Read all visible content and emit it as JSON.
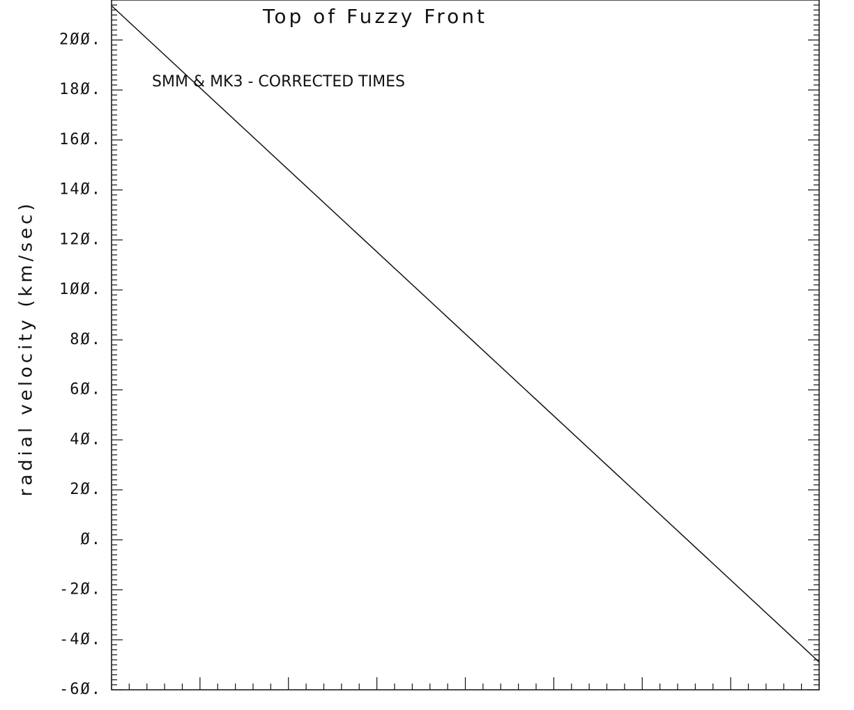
{
  "chart_data": {
    "type": "line",
    "title": "Top of Fuzzy Front",
    "annotation": "SMM & MK3 - CORRECTED TIMES",
    "ylabel": "radial velocity (km/sec)",
    "x": [
      0,
      8
    ],
    "series": [
      {
        "color": "#111111",
        "values": [
          213.7,
          -48.9
        ]
      }
    ],
    "xlim": [
      0,
      8
    ],
    "xticks": [
      0,
      1,
      2,
      3,
      4,
      5,
      6,
      7,
      8
    ],
    "ylim": [
      -60,
      216
    ],
    "yticks": [
      {
        "value": -60,
        "label": "-6Ø."
      },
      {
        "value": -40,
        "label": "-4Ø."
      },
      {
        "value": -20,
        "label": "-2Ø."
      },
      {
        "value": 0,
        "label": "Ø."
      },
      {
        "value": 20,
        "label": "2Ø."
      },
      {
        "value": 40,
        "label": "4Ø."
      },
      {
        "value": 60,
        "label": "6Ø."
      },
      {
        "value": 80,
        "label": "8Ø."
      },
      {
        "value": 100,
        "label": "1ØØ."
      },
      {
        "value": 120,
        "label": "12Ø."
      },
      {
        "value": 140,
        "label": "14Ø."
      },
      {
        "value": 160,
        "label": "16Ø."
      },
      {
        "value": 180,
        "label": "18Ø."
      },
      {
        "value": 200,
        "label": "2ØØ."
      }
    ]
  }
}
